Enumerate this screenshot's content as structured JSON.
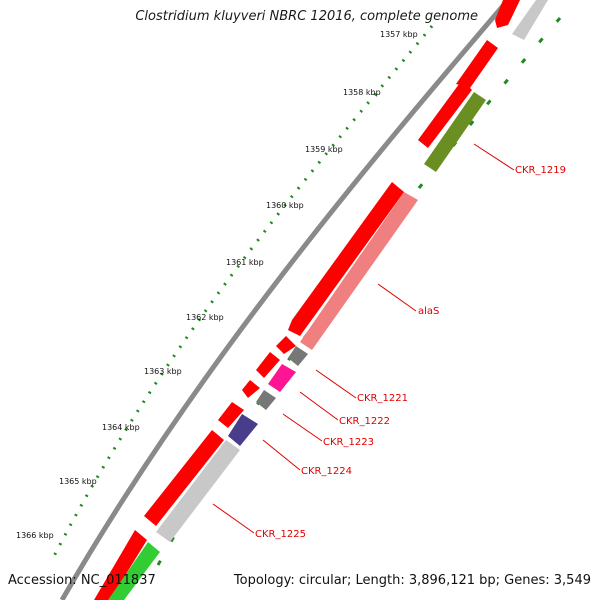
{
  "title": "Clostridium kluyveri NBRC 12016, complete genome",
  "footer": {
    "accession": "Accession: NC_011837",
    "summary": "Topology: circular; Length: 3,896,121 bp; Genes: 3,549"
  },
  "colors": {
    "cds": "#ff0000",
    "rna": "#f08080",
    "backbone": "#777777",
    "ticks": "#1f8a1f"
  },
  "kbp_ticks": [
    "1357 kbp",
    "1358 kbp",
    "1359 kbp",
    "1360 kbp",
    "1361 kbp",
    "1362 kbp",
    "1363 kbp",
    "1364 kbp",
    "1365 kbp",
    "1366 kbp"
  ],
  "gene_labels": [
    "CKR_1219",
    "alaS",
    "CKR_1221",
    "CKR_1222",
    "CKR_1223",
    "CKR_1224",
    "CKR_1225"
  ],
  "feature_colors": {
    "CKR_1219": "#6b8e23",
    "alaS": "#f08080",
    "CKR_1221": "#777777",
    "CKR_1222": "#ff1493",
    "CKR_1223": "#777777",
    "CKR_1224": "#483d8b",
    "CKR_1225": "#c8c8c8"
  }
}
